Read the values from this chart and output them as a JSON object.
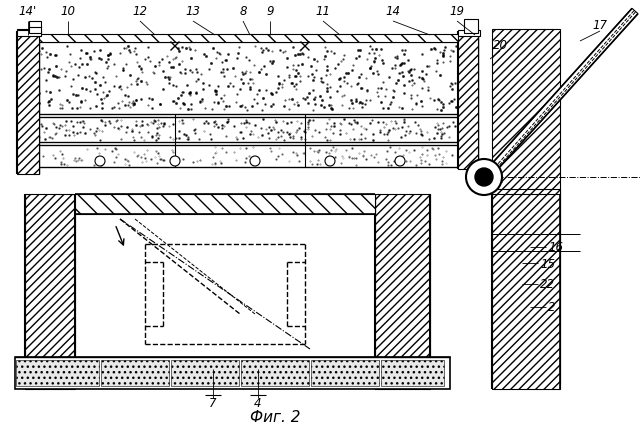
{
  "bg_color": "#ffffff",
  "lc": "#000000",
  "fig_label": "Фиг. 2",
  "top_labels": [
    [
      "14'",
      28,
      18
    ],
    [
      "10",
      68,
      18
    ],
    [
      "12",
      140,
      18
    ],
    [
      "13",
      193,
      18
    ],
    [
      "8",
      243,
      18
    ],
    [
      "9",
      270,
      18
    ],
    [
      "11",
      323,
      18
    ],
    [
      "14",
      393,
      18
    ],
    [
      "19",
      457,
      18
    ],
    [
      "20",
      500,
      52
    ],
    [
      "17",
      600,
      32
    ]
  ],
  "right_labels": [
    [
      "16",
      548,
      248
    ],
    [
      "15",
      540,
      264
    ],
    [
      "22",
      540,
      285
    ],
    [
      "2",
      548,
      308
    ]
  ],
  "bot_labels": [
    [
      "7",
      213,
      397
    ],
    [
      "4",
      258,
      397
    ]
  ]
}
